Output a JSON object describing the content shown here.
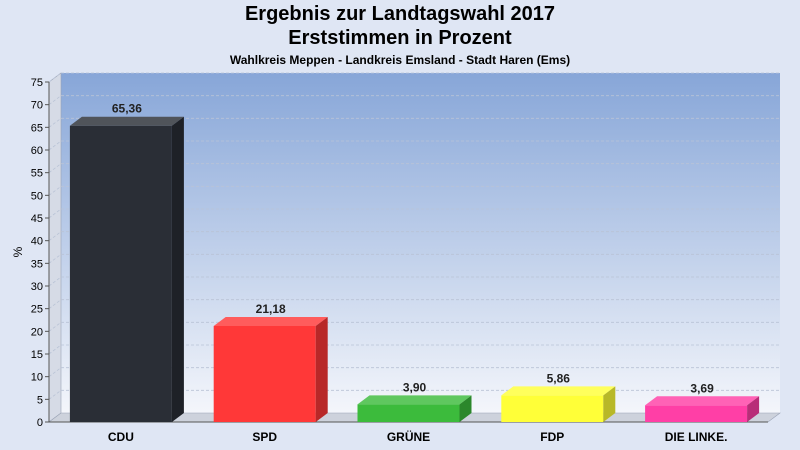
{
  "chart_data": {
    "type": "bar",
    "title": "Ergebnis zur Landtagswahl 2017",
    "subtitle": "Erststimmen in Prozent",
    "caption": "Wahlkreis Meppen - Landkreis Emsland - Stadt Haren (Ems)",
    "ylabel": "%",
    "ylim": [
      0,
      75
    ],
    "ytick_step": 5,
    "grid": true,
    "categories": [
      "CDU",
      "SPD",
      "GRÜNE",
      "FDP",
      "DIE LINKE."
    ],
    "values": [
      65.36,
      21.18,
      3.9,
      5.86,
      3.69
    ],
    "value_labels": [
      "65,36",
      "21,18",
      "3,90",
      "5,86",
      "3,69"
    ],
    "colors": [
      "#2a2e36",
      "#ff3838",
      "#3cbb3c",
      "#ffff38",
      "#ff3fa6"
    ],
    "legend": "none"
  }
}
